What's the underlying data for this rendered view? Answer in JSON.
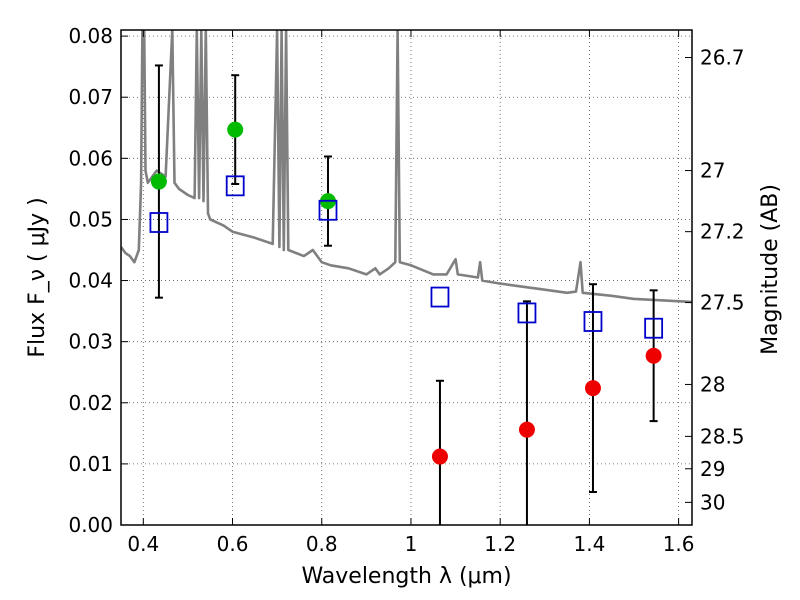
{
  "chart_data": {
    "type": "scatter",
    "xlabel": "Wavelength  λ (μm)",
    "ylabel": "Flux  F_ν  ( μJy )",
    "ylabel_right": "Magnitude (AB)",
    "xlim": [
      0.35,
      1.63
    ],
    "ylim": [
      0.0,
      0.081
    ],
    "grid": true,
    "x_ticks": [
      0.4,
      0.6,
      0.8,
      1.0,
      1.2,
      1.4,
      1.6
    ],
    "x_tick_labels": [
      "0.4",
      "0.6",
      "0.8",
      "1",
      "1.2",
      "1.4",
      "1.6"
    ],
    "y_ticks": [
      0.0,
      0.01,
      0.02,
      0.03,
      0.04,
      0.05,
      0.06,
      0.07,
      0.08
    ],
    "y_tick_labels": [
      "0.00",
      "0.01",
      "0.02",
      "0.03",
      "0.04",
      "0.05",
      "0.06",
      "0.07",
      "0.08"
    ],
    "right_ticks": [
      {
        "label": "26.7",
        "flux": 0.0765
      },
      {
        "label": "27",
        "flux": 0.058
      },
      {
        "label": "27.2",
        "flux": 0.048
      },
      {
        "label": "27.5",
        "flux": 0.0364
      },
      {
        "label": "28",
        "flux": 0.023
      },
      {
        "label": "28.5",
        "flux": 0.0145
      },
      {
        "label": "29",
        "flux": 0.0092
      },
      {
        "label": "30",
        "flux": 0.0037
      }
    ],
    "series": [
      {
        "marker": "circle",
        "color": "#00bb00",
        "points": [
          {
            "x": 0.435,
            "y": 0.0562,
            "err": 0.019
          },
          {
            "x": 0.606,
            "y": 0.0647,
            "err": 0.0089
          },
          {
            "x": 0.814,
            "y": 0.053,
            "err": 0.0073
          }
        ]
      },
      {
        "marker": "circle",
        "color": "#ee0000",
        "points": [
          {
            "x": 1.065,
            "y": 0.0112,
            "err": 0.0124
          },
          {
            "x": 1.26,
            "y": 0.0156,
            "err": 0.021
          },
          {
            "x": 1.408,
            "y": 0.0224,
            "err": 0.017
          },
          {
            "x": 1.544,
            "y": 0.0277,
            "err": 0.0107
          }
        ]
      },
      {
        "marker": "square",
        "color": "#0000cc",
        "points": [
          {
            "x": 0.435,
            "y": 0.0495
          },
          {
            "x": 0.606,
            "y": 0.0555
          },
          {
            "x": 0.814,
            "y": 0.0515
          },
          {
            "x": 1.065,
            "y": 0.0373
          },
          {
            "x": 1.26,
            "y": 0.0347
          },
          {
            "x": 1.408,
            "y": 0.0333
          },
          {
            "x": 1.544,
            "y": 0.0322
          }
        ]
      }
    ],
    "spectrum": {
      "color": "#808080",
      "points": [
        [
          0.35,
          0.0455
        ],
        [
          0.36,
          0.0445
        ],
        [
          0.37,
          0.044
        ],
        [
          0.38,
          0.043
        ],
        [
          0.39,
          0.045
        ],
        [
          0.395,
          0.056
        ],
        [
          0.398,
          0.081
        ],
        [
          0.402,
          0.081
        ],
        [
          0.405,
          0.058
        ],
        [
          0.41,
          0.056
        ],
        [
          0.42,
          0.057
        ],
        [
          0.43,
          0.058
        ],
        [
          0.45,
          0.057
        ],
        [
          0.465,
          0.081
        ],
        [
          0.47,
          0.056
        ],
        [
          0.48,
          0.055
        ],
        [
          0.5,
          0.054
        ],
        [
          0.515,
          0.0535
        ],
        [
          0.52,
          0.081
        ],
        [
          0.525,
          0.0535
        ],
        [
          0.53,
          0.081
        ],
        [
          0.535,
          0.053
        ],
        [
          0.54,
          0.081
        ],
        [
          0.545,
          0.051
        ],
        [
          0.55,
          0.05
        ],
        [
          0.58,
          0.049
        ],
        [
          0.6,
          0.048
        ],
        [
          0.65,
          0.047
        ],
        [
          0.69,
          0.046
        ],
        [
          0.7,
          0.081
        ],
        [
          0.705,
          0.0455
        ],
        [
          0.71,
          0.081
        ],
        [
          0.715,
          0.045
        ],
        [
          0.72,
          0.081
        ],
        [
          0.725,
          0.045
        ],
        [
          0.76,
          0.044
        ],
        [
          0.78,
          0.045
        ],
        [
          0.79,
          0.044
        ],
        [
          0.8,
          0.043
        ],
        [
          0.82,
          0.0425
        ],
        [
          0.86,
          0.042
        ],
        [
          0.9,
          0.041
        ],
        [
          0.92,
          0.042
        ],
        [
          0.93,
          0.041
        ],
        [
          0.95,
          0.042
        ],
        [
          0.965,
          0.043
        ],
        [
          0.97,
          0.081
        ],
        [
          0.975,
          0.043
        ],
        [
          1.0,
          0.0425
        ],
        [
          1.05,
          0.041
        ],
        [
          1.08,
          0.041
        ],
        [
          1.1,
          0.0435
        ],
        [
          1.105,
          0.041
        ],
        [
          1.15,
          0.0405
        ],
        [
          1.155,
          0.043
        ],
        [
          1.16,
          0.04
        ],
        [
          1.2,
          0.0395
        ],
        [
          1.25,
          0.039
        ],
        [
          1.3,
          0.0385
        ],
        [
          1.35,
          0.038
        ],
        [
          1.37,
          0.0382
        ],
        [
          1.38,
          0.043
        ],
        [
          1.385,
          0.038
        ],
        [
          1.45,
          0.0375
        ],
        [
          1.5,
          0.037
        ],
        [
          1.55,
          0.0368
        ],
        [
          1.63,
          0.0365
        ]
      ]
    }
  }
}
